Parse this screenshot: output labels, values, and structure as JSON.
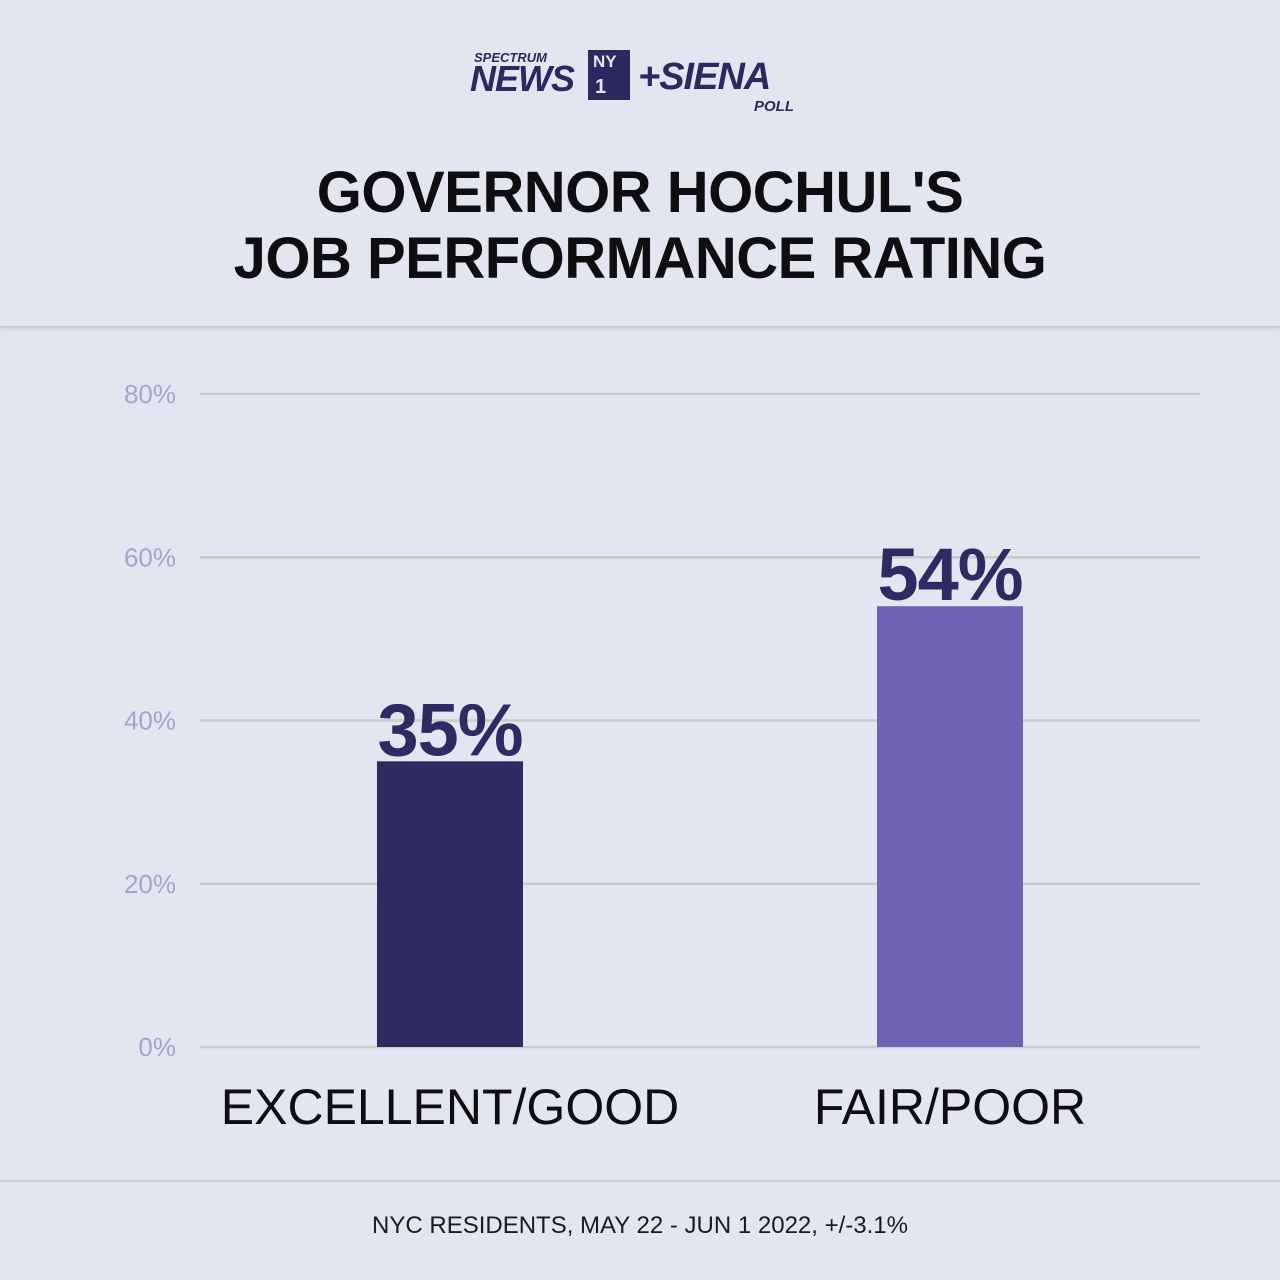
{
  "logo": {
    "spectrum": "SPECTRUM",
    "news": "NEWS",
    "ny": "NY",
    "one": "1",
    "siena": "+SIENA",
    "poll": "POLL"
  },
  "title": {
    "line1": "GOVERNOR HOCHUL'S",
    "line2": "JOB PERFORMANCE RATING"
  },
  "footer": "NYC RESIDENTS, MAY 22 - JUN 1 2022, +/-3.1%",
  "colors": {
    "bar_excellent": "#2e2b63",
    "bar_fair": "#6e62b6",
    "value_label": "#2e2b63",
    "tick_label": "#a6a3cc",
    "grid": "#c9ccc8"
  },
  "chart_data": {
    "type": "bar",
    "categories": [
      "EXCELLENT/GOOD",
      "FAIR/POOR"
    ],
    "values": [
      35,
      54
    ],
    "value_labels": [
      "35%",
      "54%"
    ],
    "yticks": [
      0,
      20,
      40,
      60,
      80
    ],
    "ytick_labels": [
      "0%",
      "20%",
      "40%",
      "60%",
      "80%"
    ],
    "ylim": [
      0,
      80
    ],
    "grid": true,
    "title": "GOVERNOR HOCHUL'S JOB PERFORMANCE RATING",
    "xlabel": "",
    "ylabel": ""
  }
}
